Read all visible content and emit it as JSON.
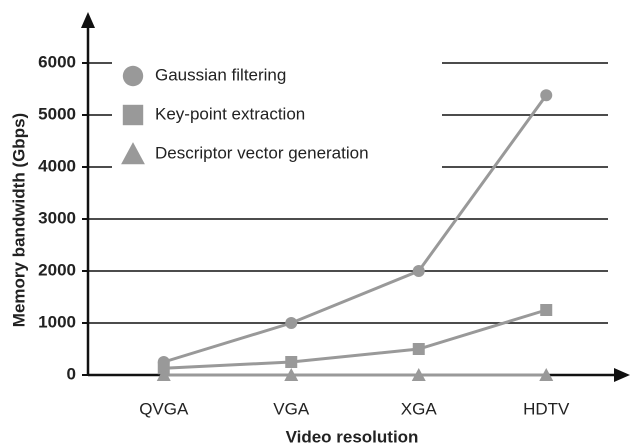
{
  "chart_data": {
    "type": "line",
    "x_label": "Video resolution",
    "y_label": "Memory bandwidth (Gbps)",
    "categories": [
      "QVGA",
      "VGA",
      "XGA",
      "HDTV"
    ],
    "series": [
      {
        "name": "Gaussian filtering",
        "color": "#999999",
        "marker": "circle",
        "values": [
          250,
          1000,
          2000,
          5380
        ]
      },
      {
        "name": "Key-point extraction",
        "color": "#999999",
        "marker": "square",
        "values": [
          130,
          250,
          500,
          1250
        ]
      },
      {
        "name": "Descriptor vector generation",
        "color": "#999999",
        "marker": "triangle",
        "values": [
          0,
          0,
          0,
          0
        ]
      }
    ],
    "ylim": [
      0,
      6000
    ],
    "yticks": [
      0,
      1000,
      2000,
      3000,
      4000,
      5000,
      6000
    ],
    "grid": true,
    "legend": "upper left"
  }
}
